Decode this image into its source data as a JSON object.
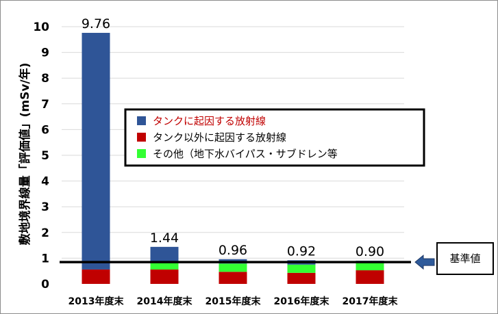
{
  "chart_data": {
    "type": "bar",
    "stacked": true,
    "categories": [
      "2013年度末",
      "2014年度末",
      "2015年度末",
      "2016年度末",
      "2017年度末"
    ],
    "series": [
      {
        "name": "タンクに起因する放射線",
        "color": "#2f5597",
        "text_color": "#c00000",
        "values": [
          9.2,
          0.58,
          0.17,
          0.17,
          0.05
        ]
      },
      {
        "name": "タンク以外に起因する放射線",
        "color": "#c00000",
        "text_color": "#000000",
        "values": [
          0.56,
          0.56,
          0.47,
          0.43,
          0.53
        ]
      },
      {
        "name": "その他（地下水バイパス・サブドレン等",
        "color": "#33ff33",
        "text_color": "#000000",
        "values": [
          0,
          0.3,
          0.32,
          0.32,
          0.32
        ]
      }
    ],
    "totals": [
      "9.76",
      "1.44",
      "0.96",
      "0.92",
      "0.90"
    ],
    "ylabel": "敷地境界線量「評価値」(mSv/年)",
    "ylim": [
      0,
      10
    ],
    "yticks": [
      "0",
      "1",
      "2",
      "3",
      "4",
      "5",
      "6",
      "7",
      "8",
      "9",
      "10"
    ],
    "grid": true,
    "legend_position": "center",
    "reference": {
      "value": 0.9,
      "label": "基準値",
      "color": "#2e5a9a"
    }
  }
}
